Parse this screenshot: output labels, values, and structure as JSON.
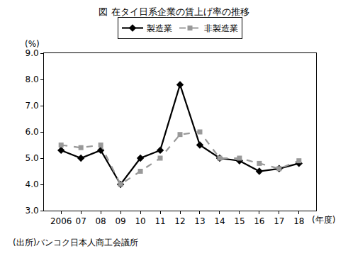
{
  "chart_data": {
    "type": "line",
    "title": "図 在タイ日系企業の賃上げ率の推移",
    "y_label": "(%)",
    "x_label": "(年度)",
    "annotations": [
      "(出所)バンコク日本人商工会議所"
    ],
    "categories": [
      "2006",
      "07",
      "08",
      "09",
      "10",
      "11",
      "12",
      "13",
      "14",
      "15",
      "16",
      "17",
      "18"
    ],
    "series": [
      {
        "name": "製造業",
        "color": "#000000",
        "marker": "diamond",
        "line_style": "solid",
        "values": [
          5.3,
          5.0,
          5.3,
          4.0,
          5.0,
          5.3,
          7.8,
          5.5,
          5.0,
          4.9,
          4.5,
          4.6,
          4.8
        ]
      },
      {
        "name": "非製造業",
        "color": "#999999",
        "marker": "square",
        "line_style": "dashed",
        "values": [
          5.5,
          5.4,
          5.5,
          4.0,
          4.5,
          5.0,
          5.9,
          6.0,
          5.0,
          5.0,
          4.8,
          4.6,
          4.9
        ]
      }
    ],
    "ylim": [
      3,
      9
    ],
    "yticks": [
      {
        "value": 3,
        "label": "3.0"
      },
      {
        "value": 4,
        "label": "4.0"
      },
      {
        "value": 5,
        "label": "5.0"
      },
      {
        "value": 6,
        "label": "6.0"
      },
      {
        "value": 7,
        "label": "7.0"
      },
      {
        "value": 8,
        "label": "8.0"
      },
      {
        "value": 9,
        "label": "9.0"
      }
    ],
    "grid": false,
    "legend": "top"
  }
}
